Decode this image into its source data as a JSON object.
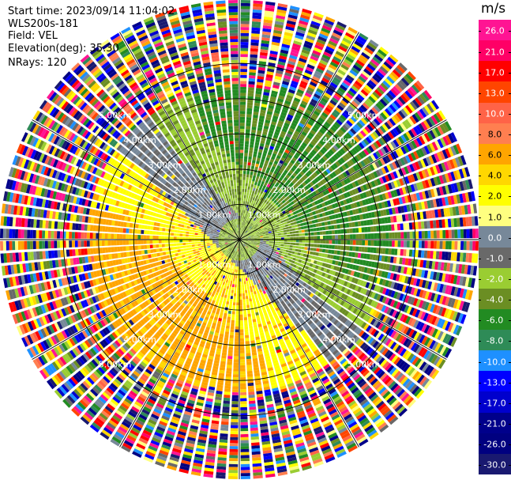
{
  "header": {
    "start_time": "Start time: 2023/09/14 11:04:02",
    "instrument": "WLS200s-181",
    "field": "Field: VEL",
    "elevation": "Elevation(deg): 35.30",
    "nrays": "NRays: 120"
  },
  "colorbar": {
    "unit": "m/s",
    "bins": [
      {
        "label": "26.0",
        "color": "#ff1493"
      },
      {
        "label": "21.0",
        "color": "#ff0066"
      },
      {
        "label": "17.0",
        "color": "#ff0000"
      },
      {
        "label": "13.0",
        "color": "#ff4500"
      },
      {
        "label": "10.0",
        "color": "#ff6347"
      },
      {
        "label": "8.0",
        "color": "#ff7f50"
      },
      {
        "label": "6.0",
        "color": "#ffa500"
      },
      {
        "label": "4.0",
        "color": "#ffd700"
      },
      {
        "label": "2.0",
        "color": "#ffff00"
      },
      {
        "label": "1.0",
        "color": "#ffff80"
      },
      {
        "label": "0.0",
        "color": "#778899"
      },
      {
        "label": "-1.0",
        "color": "#696969"
      },
      {
        "label": "-2.0",
        "color": "#9acd32"
      },
      {
        "label": "-4.0",
        "color": "#6b8e23"
      },
      {
        "label": "-6.0",
        "color": "#228b22"
      },
      {
        "label": "-8.0",
        "color": "#2e8b57"
      },
      {
        "label": "-10.0",
        "color": "#1e90ff"
      },
      {
        "label": "-13.0",
        "color": "#0000ff"
      },
      {
        "label": "-17.0",
        "color": "#0000cd"
      },
      {
        "label": "-21.0",
        "color": "#00008b"
      },
      {
        "label": "-26.0",
        "color": "#000080"
      },
      {
        "label": "-30.0",
        "color": "#191970"
      }
    ]
  },
  "chart_data": {
    "type": "heatmap",
    "projection": "polar PPI",
    "field": "VEL",
    "units": "m/s",
    "n_rays": 120,
    "elevation_deg": 35.3,
    "range_rings": [
      {
        "range_km": 1,
        "label": "1.00km"
      },
      {
        "range_km": 2,
        "label": "2.00km"
      },
      {
        "range_km": 3,
        "label": "3.00km"
      },
      {
        "range_km": 4,
        "label": "4.00km"
      },
      {
        "range_km": 5,
        "label": "5.00km"
      }
    ],
    "max_range_km": 6.8,
    "spoke_azimuths_deg": [
      0,
      30,
      60,
      90,
      120,
      150,
      180,
      210,
      240,
      270,
      300,
      330
    ],
    "patterns": {
      "inner_ring_km": 0.6,
      "valid_data_edge_km": 4.3,
      "noise_beyond_edge": true,
      "positive_velocity_azimuth_deg": 225,
      "negative_velocity_azimuth_deg": 45
    }
  }
}
